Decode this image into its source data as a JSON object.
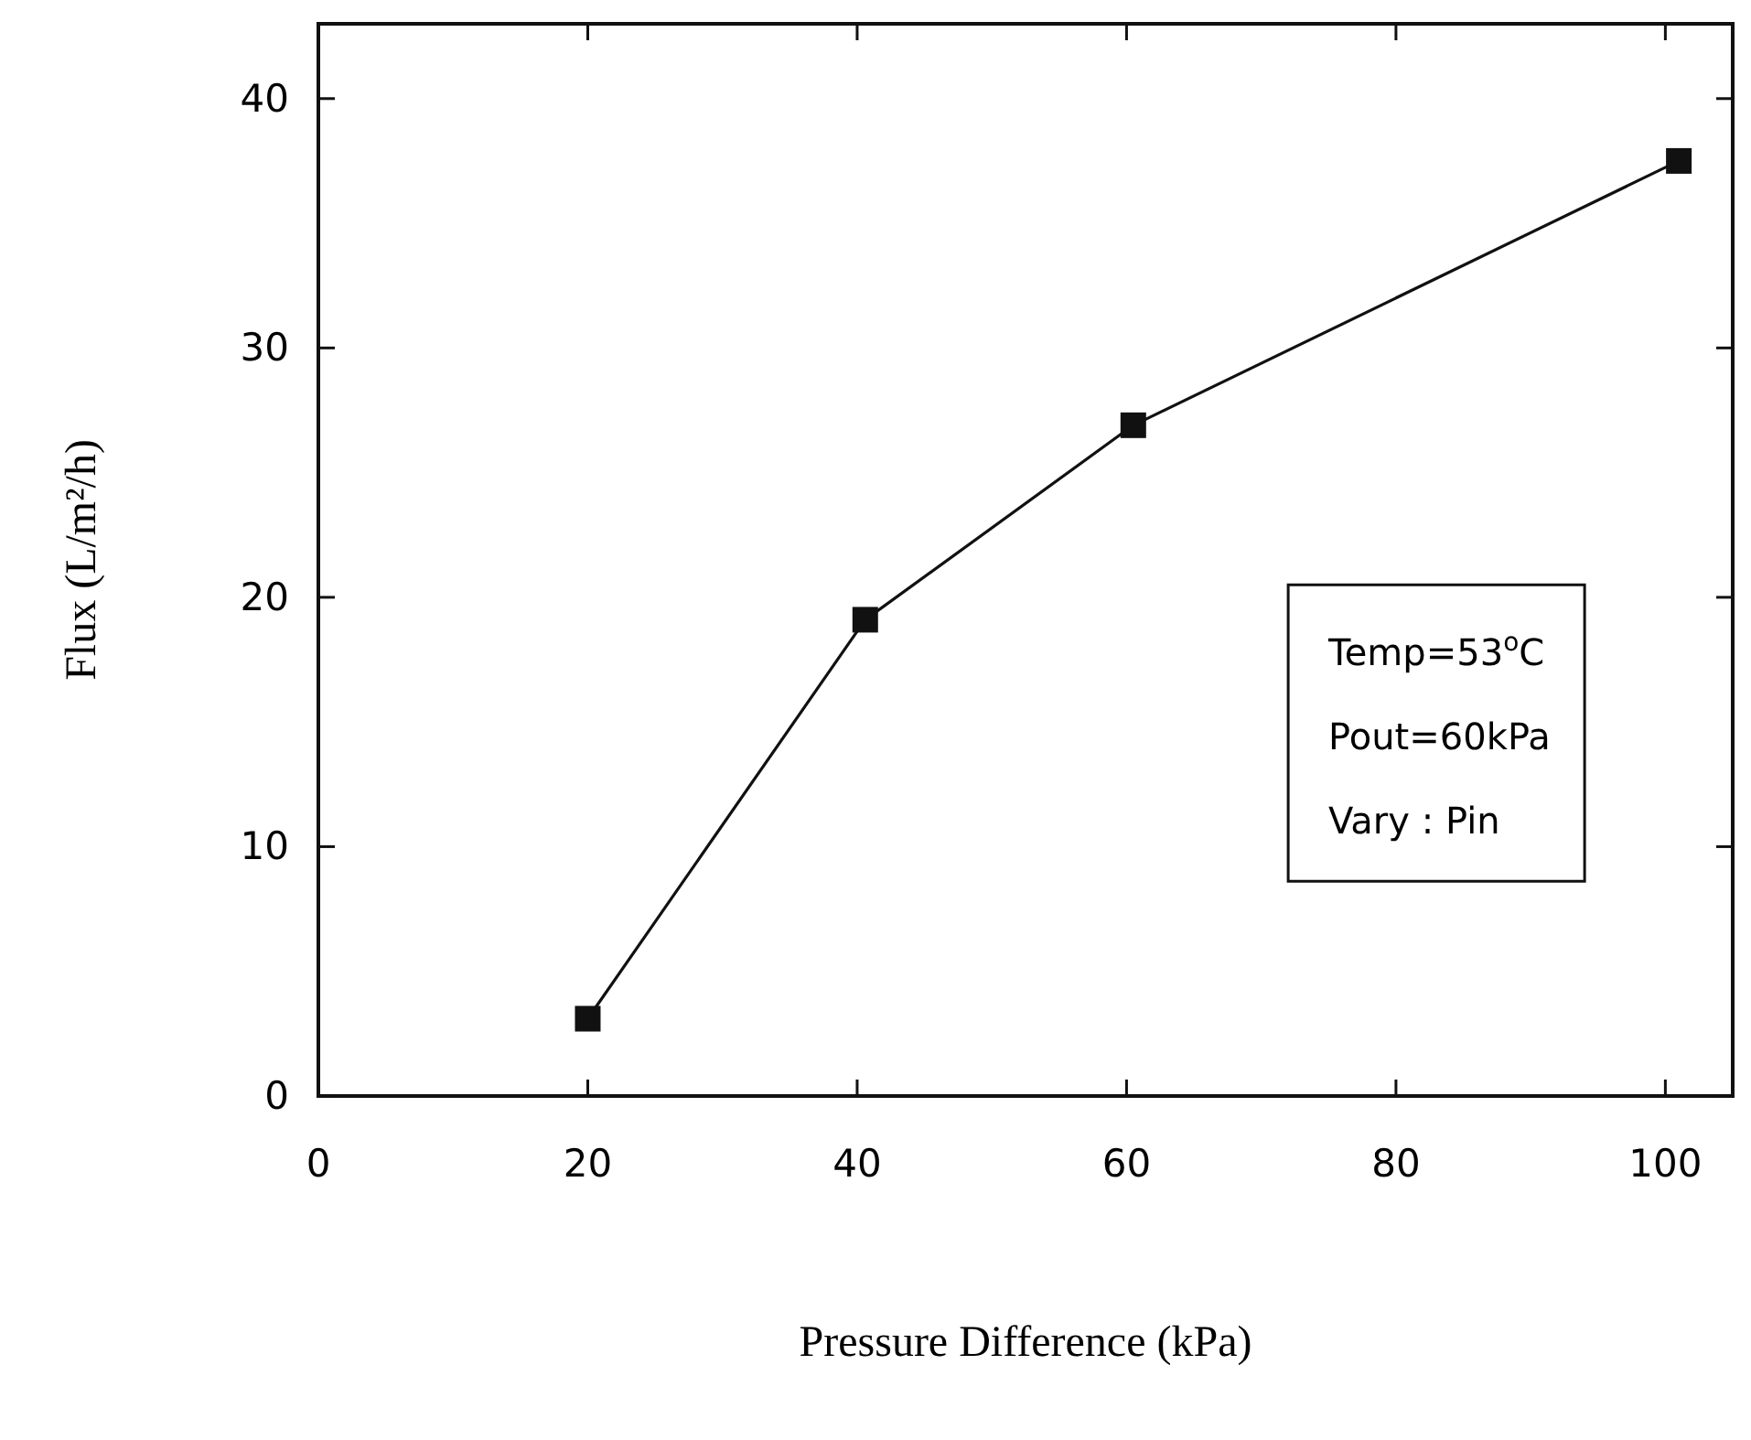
{
  "chart_data": {
    "type": "line",
    "xlabel": "Pressure Difference (kPa)",
    "ylabel": "Flux (L/m²/h)",
    "x": [
      20,
      40.6,
      60.5,
      101
    ],
    "series": [
      {
        "color": "#111111",
        "values": [
          3.1,
          19.1,
          26.9,
          37.5
        ]
      }
    ],
    "xlim": [
      0,
      105
    ],
    "ylim": [
      0,
      43
    ],
    "xticks": [
      0,
      20,
      40,
      60,
      80,
      100
    ],
    "yticks": [
      0,
      10,
      20,
      30,
      40
    ],
    "marker": "square",
    "line_style": "solid",
    "annotations": [
      "Temp=53$^{o}$C",
      "Pout=60kPa",
      "Vary : Pin"
    ]
  }
}
